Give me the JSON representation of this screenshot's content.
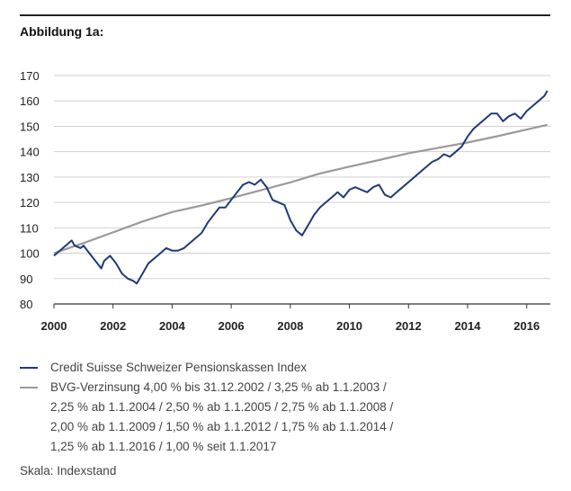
{
  "figure_label": "Abbildung 1a:",
  "scale_note": "Skala: Indexstand",
  "legend": [
    {
      "label": "Credit Suisse Schweizer Pensionskassen Index",
      "color": "#1f3a7a"
    },
    {
      "label": "BVG-Verzinsung 4,00 % bis 31.12.2002 / 3,25 % ab 1.1.2003 /\n2,25 % ab 1.1.2004 / 2,50 % ab 1.1.2005 / 2,75 % ab 1.1.2008 /\n2,00 % ab 1.1.2009 / 1,50 % ab 1.1.2012 / 1,75 % ab 1.1.2014 /\n1,25 % ab 1.1.2016 / 1,00 % seit 1.1.2017",
      "color": "#9a9a9a"
    }
  ],
  "chart_data": {
    "type": "line",
    "title": "",
    "xlabel": "",
    "ylabel": "",
    "xlim": [
      2000.0,
      2016.8
    ],
    "ylim": [
      80,
      170
    ],
    "x_ticks": [
      "2000",
      "2002",
      "2004",
      "2006",
      "2008",
      "2010",
      "2012",
      "2014",
      "2016"
    ],
    "y_ticks": [
      "80",
      "90",
      "100",
      "110",
      "120",
      "130",
      "140",
      "150",
      "160",
      "170"
    ],
    "grid": "horizontal",
    "legend_position": "bottom",
    "series": [
      {
        "name": "Credit Suisse Schweizer Pensionskassen Index",
        "color": "#1f3a7a",
        "x": [
          2000.0,
          2000.1,
          2000.3,
          2000.5,
          2000.6,
          2000.7,
          2000.9,
          2001.0,
          2001.2,
          2001.4,
          2001.6,
          2001.7,
          2001.9,
          2002.1,
          2002.3,
          2002.5,
          2002.7,
          2002.8,
          2003.0,
          2003.2,
          2003.4,
          2003.6,
          2003.8,
          2004.0,
          2004.2,
          2004.4,
          2004.6,
          2004.8,
          2005.0,
          2005.2,
          2005.4,
          2005.6,
          2005.8,
          2006.0,
          2006.2,
          2006.4,
          2006.6,
          2006.8,
          2007.0,
          2007.2,
          2007.4,
          2007.6,
          2007.8,
          2008.0,
          2008.2,
          2008.4,
          2008.6,
          2008.8,
          2009.0,
          2009.2,
          2009.4,
          2009.6,
          2009.8,
          2010.0,
          2010.2,
          2010.4,
          2010.6,
          2010.8,
          2011.0,
          2011.2,
          2011.4,
          2011.6,
          2011.8,
          2012.0,
          2012.2,
          2012.4,
          2012.6,
          2012.8,
          2013.0,
          2013.2,
          2013.4,
          2013.6,
          2013.8,
          2014.0,
          2014.2,
          2014.4,
          2014.6,
          2014.8,
          2015.0,
          2015.2,
          2015.4,
          2015.6,
          2015.8,
          2016.0,
          2016.2,
          2016.4,
          2016.6,
          2016.7
        ],
        "values": [
          99,
          100,
          102,
          104,
          105,
          103,
          102,
          103,
          100,
          97,
          94,
          97,
          99,
          96,
          92,
          90,
          89,
          88,
          92,
          96,
          98,
          100,
          102,
          101,
          101,
          102,
          104,
          106,
          108,
          112,
          115,
          118,
          118,
          121,
          124,
          127,
          128,
          127,
          129,
          126,
          121,
          120,
          119,
          113,
          109,
          107,
          111,
          115,
          118,
          120,
          122,
          124,
          122,
          125,
          126,
          125,
          124,
          126,
          127,
          123,
          122,
          124,
          126,
          128,
          130,
          132,
          134,
          136,
          137,
          139,
          138,
          140,
          142,
          146,
          149,
          151,
          153,
          155,
          155,
          152,
          154,
          155,
          153,
          156,
          158,
          160,
          162,
          164
        ]
      },
      {
        "name": "BVG-Verzinsung 4,00 % bis 31.12.2002 / 3,25 % ab 1.1.2003 / 2,25 % ab 1.1.2004 / 2,50 % ab 1.1.2005 / 2,75 % ab 1.1.2008 / 2,00 % ab 1.1.2009 / 1,50 % ab 1.1.2012 / 1,75 % ab 1.1.2014 / 1,25 % ab 1.1.2016 / 1,00 % seit 1.1.2017",
        "color": "#9a9a9a",
        "x": [
          2000.0,
          2001.0,
          2002.0,
          2003.0,
          2004.0,
          2005.0,
          2006.0,
          2007.0,
          2008.0,
          2009.0,
          2010.0,
          2011.0,
          2012.0,
          2013.0,
          2014.0,
          2015.0,
          2016.0,
          2016.7
        ],
        "values": [
          100.0,
          104.0,
          108.2,
          112.5,
          116.2,
          118.8,
          121.7,
          124.8,
          127.9,
          131.4,
          134.1,
          136.7,
          139.4,
          141.5,
          143.6,
          146.1,
          148.7,
          150.6
        ]
      }
    ]
  }
}
